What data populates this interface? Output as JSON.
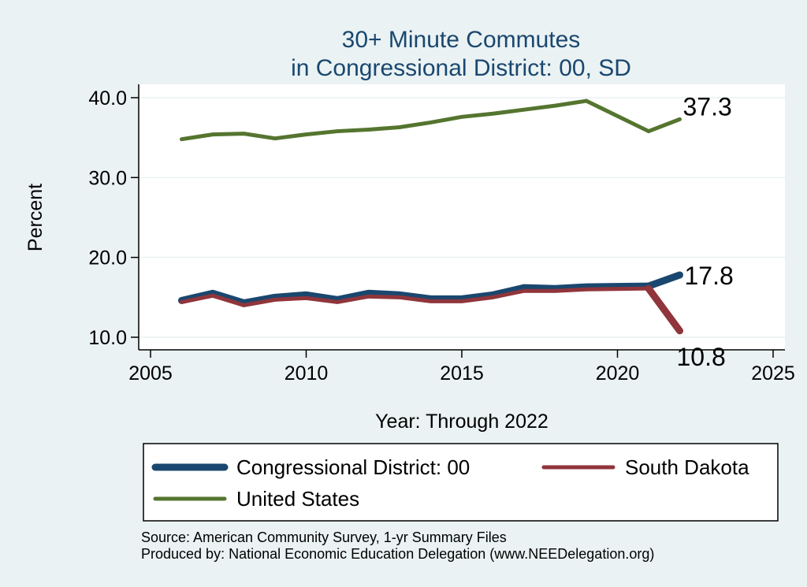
{
  "chart_data": {
    "type": "line",
    "title": [
      "30+ Minute Commutes",
      "in Congressional District:  00, SD"
    ],
    "xlabel": "Year: Through 2022",
    "ylabel": "Percent",
    "xlim": [
      2005,
      2025
    ],
    "ylim": [
      10,
      40
    ],
    "x_ticks": [
      "2005",
      "2010",
      "2015",
      "2020",
      "2025"
    ],
    "y_ticks": [
      "40.0",
      "30.0",
      "20.0",
      "10.0"
    ],
    "grid": true,
    "legend_position": "bottom",
    "x": [
      2006,
      2007,
      2008,
      2009,
      2010,
      2011,
      2012,
      2013,
      2014,
      2015,
      2016,
      2017,
      2018,
      2019,
      2021,
      2022
    ],
    "series": [
      {
        "name": "Congressional District:  00",
        "color": "#1a476f",
        "values": [
          14.6,
          15.5,
          14.3,
          15.0,
          15.3,
          14.7,
          15.5,
          15.3,
          14.8,
          14.8,
          15.3,
          16.2,
          16.1,
          16.3,
          16.4,
          17.8
        ],
        "end_label": "17.8"
      },
      {
        "name": "South Dakota",
        "color": "#90353b",
        "values": [
          14.4,
          15.2,
          14.0,
          14.7,
          14.9,
          14.4,
          15.1,
          15.0,
          14.5,
          14.5,
          15.0,
          15.8,
          15.8,
          16.0,
          16.1,
          10.8
        ],
        "end_label": "10.8"
      },
      {
        "name": "United States",
        "color": "#55752f",
        "values": [
          34.8,
          35.4,
          35.5,
          34.9,
          35.4,
          35.8,
          36.0,
          36.3,
          36.9,
          37.6,
          38.0,
          38.5,
          39.0,
          39.6,
          35.8,
          37.3
        ],
        "end_label": "37.3"
      }
    ]
  },
  "notes": [
    "Source: American Community Survey, 1-yr Summary Files",
    "Produced by: National Economic Education Delegation (www.NEEDelegation.org)"
  ]
}
